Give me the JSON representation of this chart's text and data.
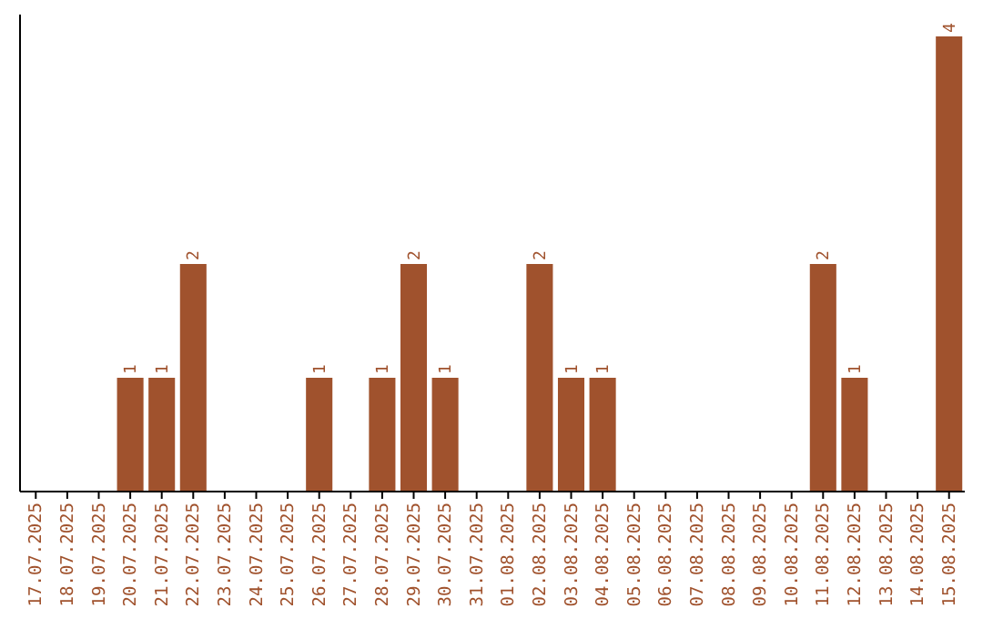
{
  "chart_data": {
    "type": "bar",
    "categories": [
      "17.07.2025",
      "18.07.2025",
      "19.07.2025",
      "20.07.2025",
      "21.07.2025",
      "22.07.2025",
      "23.07.2025",
      "24.07.2025",
      "25.07.2025",
      "26.07.2025",
      "27.07.2025",
      "28.07.2025",
      "29.07.2025",
      "30.07.2025",
      "31.07.2025",
      "01.08.2025",
      "02.08.2025",
      "03.08.2025",
      "04.08.2025",
      "05.08.2025",
      "06.08.2025",
      "07.08.2025",
      "08.08.2025",
      "09.08.2025",
      "10.08.2025",
      "11.08.2025",
      "12.08.2025",
      "13.08.2025",
      "14.08.2025",
      "15.08.2025"
    ],
    "values": [
      0,
      0,
      0,
      1,
      1,
      2,
      0,
      0,
      0,
      1,
      0,
      1,
      2,
      1,
      0,
      0,
      2,
      1,
      1,
      0,
      0,
      0,
      0,
      0,
      0,
      2,
      1,
      0,
      0,
      4
    ],
    "value_labels": [
      null,
      null,
      null,
      "1",
      "1",
      "2",
      null,
      null,
      null,
      "1",
      null,
      "1",
      "2",
      "1",
      null,
      null,
      "2",
      "1",
      "1",
      null,
      null,
      null,
      null,
      null,
      null,
      "2",
      "1",
      null,
      null,
      "4"
    ],
    "color": "#a0522d"
  }
}
